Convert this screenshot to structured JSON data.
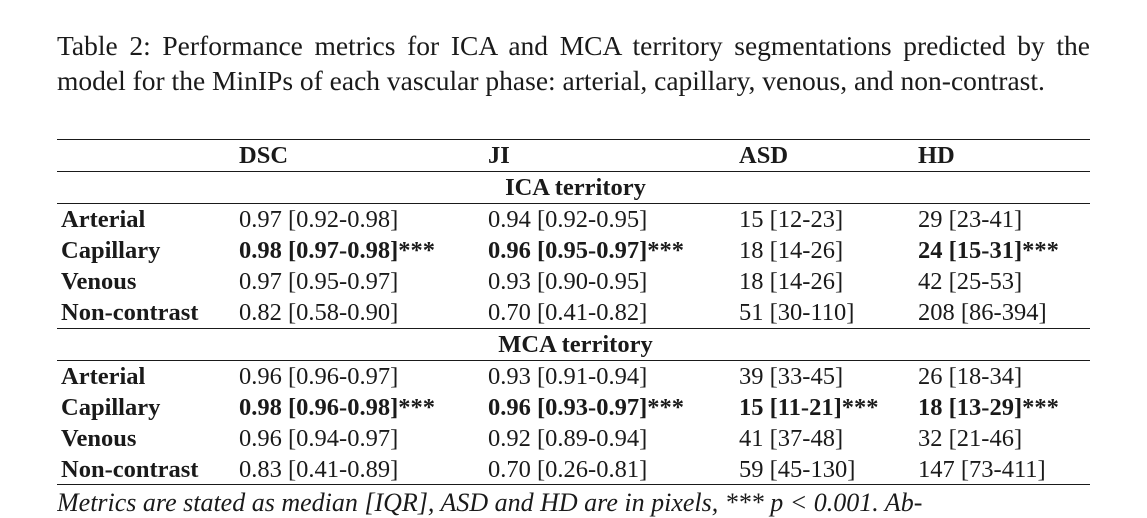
{
  "caption": "Table 2: Performance metrics for ICA and MCA territory segmentations predicted by the model for the MinIPs of each vascular phase: arterial, capillary, venous, and non-contrast.",
  "table": {
    "headers": [
      "",
      "DSC",
      "JI",
      "ASD",
      "HD"
    ],
    "sections": [
      {
        "title": "ICA territory",
        "rows": [
          {
            "label": "Arterial",
            "cells": [
              "0.97 [0.92-0.98]",
              "0.94 [0.92-0.95]",
              "15 [12-23]",
              "29 [23-41]"
            ],
            "bold": [
              false,
              false,
              false,
              false
            ]
          },
          {
            "label": "Capillary",
            "cells": [
              "0.98 [0.97-0.98]***",
              "0.96 [0.95-0.97]***",
              "18 [14-26]",
              "24 [15-31]***"
            ],
            "bold": [
              true,
              true,
              false,
              true
            ]
          },
          {
            "label": "Venous",
            "cells": [
              "0.97 [0.95-0.97]",
              "0.93 [0.90-0.95]",
              "18 [14-26]",
              "42 [25-53]"
            ],
            "bold": [
              false,
              false,
              false,
              false
            ]
          },
          {
            "label": "Non-contrast",
            "cells": [
              "0.82 [0.58-0.90]",
              "0.70 [0.41-0.82]",
              "51 [30-110]",
              "208 [86-394]"
            ],
            "bold": [
              false,
              false,
              false,
              false
            ]
          }
        ]
      },
      {
        "title": "MCA territory",
        "rows": [
          {
            "label": "Arterial",
            "cells": [
              "0.96 [0.96-0.97]",
              "0.93 [0.91-0.94]",
              "39 [33-45]",
              "26 [18-34]"
            ],
            "bold": [
              false,
              false,
              false,
              false
            ]
          },
          {
            "label": "Capillary",
            "cells": [
              "0.98 [0.96-0.98]***",
              "0.96 [0.93-0.97]***",
              "15 [11-21]***",
              "18 [13-29]***"
            ],
            "bold": [
              true,
              true,
              true,
              true
            ]
          },
          {
            "label": "Venous",
            "cells": [
              "0.96 [0.94-0.97]",
              "0.92 [0.89-0.94]",
              "41 [37-48]",
              "32 [21-46]"
            ],
            "bold": [
              false,
              false,
              false,
              false
            ]
          },
          {
            "label": "Non-contrast",
            "cells": [
              "0.83 [0.41-0.89]",
              "0.70 [0.26-0.81]",
              "59 [45-130]",
              "147 [73-411]"
            ],
            "bold": [
              false,
              false,
              false,
              false
            ]
          }
        ]
      }
    ]
  },
  "footnote": "Metrics are stated as median [IQR], ASD and HD are in pixels, *** p < 0.001. Ab-"
}
